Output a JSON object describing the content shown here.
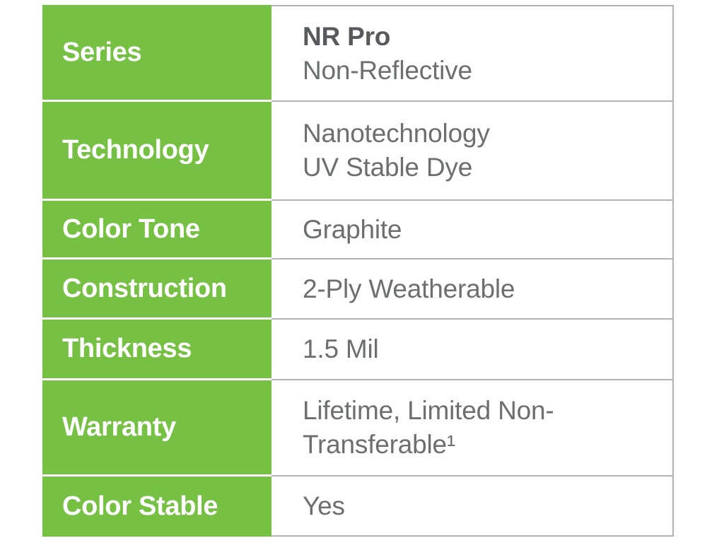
{
  "table": {
    "colors": {
      "accent_green": "#76C043",
      "border_gray": "#b2b3b5",
      "label_text": "#ffffff",
      "value_text": "#6d6e70",
      "value_text_bold": "#58595c"
    },
    "rows": [
      {
        "label": "Series",
        "value": [
          "NR Pro",
          "Non-Reflective"
        ]
      },
      {
        "label": "Technology",
        "value": [
          "Nanotechnology",
          "UV Stable Dye"
        ]
      },
      {
        "label": "Color Tone",
        "value": [
          "Graphite"
        ]
      },
      {
        "label": "Construction",
        "value": [
          "2-Ply Weatherable"
        ]
      },
      {
        "label": "Thickness",
        "value": [
          "1.5 Mil"
        ]
      },
      {
        "label": "Warranty",
        "value": [
          "Lifetime, Limited Non-",
          "Transferable¹"
        ]
      },
      {
        "label": "Color Stable",
        "value": [
          "Yes"
        ]
      }
    ]
  }
}
